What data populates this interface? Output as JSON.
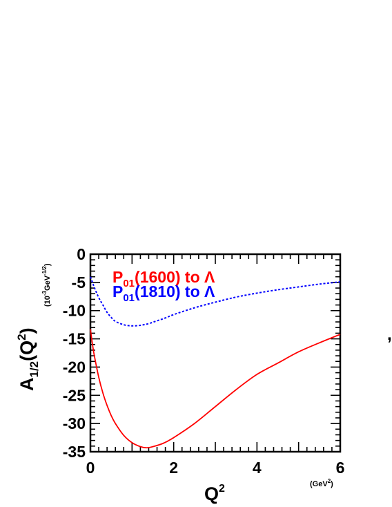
{
  "chart_data": {
    "type": "line",
    "xlabel": {
      "base": "Q",
      "sup": "2"
    },
    "xunit": {
      "open": "(GeV",
      "sup": "2",
      "close": ")"
    },
    "ylabel": {
      "base": "A",
      "sub": "1/2",
      "open": "(Q",
      "sup": "2",
      "close": ")"
    },
    "yunit": {
      "open": "(10",
      "sup1": "-3",
      "mid": "GeV",
      "sup2": "-1/2",
      "close": ")"
    },
    "xlim": [
      0,
      6
    ],
    "ylim": [
      -35,
      0
    ],
    "xticks": [
      "0",
      "2",
      "4",
      "6"
    ],
    "yticks": [
      "0",
      "-5",
      "-10",
      "-15",
      "-20",
      "-25",
      "-30",
      "-35"
    ],
    "series": [
      {
        "name": {
          "base": "P",
          "sub": "01",
          "rest": "(1600) to Λ"
        },
        "color": "#ff0000",
        "style": "solid",
        "x": [
          0,
          0.05,
          0.1,
          0.2,
          0.3,
          0.4,
          0.5,
          0.6,
          0.8,
          1.0,
          1.2,
          1.35,
          1.5,
          1.75,
          2.0,
          2.5,
          3.0,
          3.5,
          4.0,
          4.5,
          5.0,
          5.5,
          6.0
        ],
        "y": [
          -13.3,
          -16.0,
          -18.2,
          -21.8,
          -24.6,
          -26.8,
          -28.6,
          -30.0,
          -32.1,
          -33.4,
          -34.1,
          -34.3,
          -34.1,
          -33.5,
          -32.5,
          -30.0,
          -27.0,
          -24.0,
          -21.3,
          -19.3,
          -17.3,
          -15.7,
          -14.2
        ]
      },
      {
        "name": {
          "base": "P",
          "sub": "01",
          "rest": "(1810) to Λ"
        },
        "color": "#0000ff",
        "style": "dotted",
        "x": [
          0,
          0.05,
          0.1,
          0.2,
          0.3,
          0.4,
          0.5,
          0.6,
          0.8,
          1.0,
          1.2,
          1.4,
          1.6,
          1.8,
          2.0,
          2.5,
          3.0,
          3.5,
          4.0,
          4.5,
          5.0,
          5.5,
          6.0
        ],
        "y": [
          -4.0,
          -5.0,
          -6.0,
          -7.7,
          -9.0,
          -10.3,
          -11.2,
          -11.9,
          -12.5,
          -12.7,
          -12.6,
          -12.3,
          -11.8,
          -11.3,
          -10.7,
          -9.5,
          -8.5,
          -7.6,
          -6.9,
          -6.3,
          -5.8,
          -5.3,
          -4.9
        ]
      }
    ]
  }
}
